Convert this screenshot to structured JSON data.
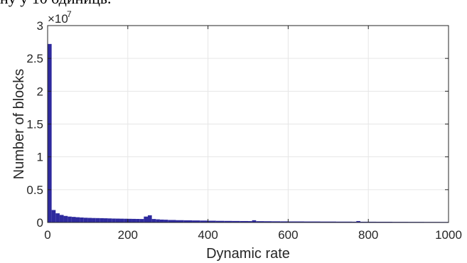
{
  "crop_text": "ну у 10 одиниць.",
  "chart_data": {
    "type": "bar",
    "xlabel": "Dynamic rate",
    "ylabel": "Number of blocks",
    "xlim": [
      0,
      1000
    ],
    "ylim": [
      0,
      30000000
    ],
    "y_exponent_label": "×10",
    "y_exponent_power": "7",
    "x_ticks": [
      {
        "value": 0,
        "label": "0"
      },
      {
        "value": 200,
        "label": "200"
      },
      {
        "value": 400,
        "label": "400"
      },
      {
        "value": 600,
        "label": "600"
      },
      {
        "value": 800,
        "label": "800"
      },
      {
        "value": 1000,
        "label": "1000"
      }
    ],
    "y_ticks": [
      {
        "value": 0,
        "label": "0"
      },
      {
        "value": 5000000,
        "label": "0.5"
      },
      {
        "value": 10000000,
        "label": "1"
      },
      {
        "value": 15000000,
        "label": "1.5"
      },
      {
        "value": 20000000,
        "label": "2"
      },
      {
        "value": 25000000,
        "label": "2.5"
      },
      {
        "value": 30000000,
        "label": "3"
      }
    ],
    "grid": true,
    "bar_color": "#2e2a9e",
    "bin_width": 10,
    "bin_starts": [
      0,
      10,
      20,
      30,
      40,
      50,
      60,
      70,
      80,
      90,
      100,
      110,
      120,
      130,
      140,
      150,
      160,
      170,
      180,
      190,
      200,
      210,
      220,
      230,
      240,
      250,
      260,
      270,
      280,
      290,
      300,
      320,
      340,
      360,
      380,
      400,
      420,
      440,
      460,
      480,
      500,
      510,
      520,
      540,
      560,
      580,
      600,
      640,
      680,
      720,
      760,
      770,
      780,
      820,
      860,
      900,
      940,
      980
    ],
    "values": [
      27200000,
      1900000,
      1400000,
      1150000,
      1000000,
      900000,
      850000,
      800000,
      760000,
      720000,
      700000,
      680000,
      670000,
      660000,
      640000,
      620000,
      600000,
      590000,
      580000,
      570000,
      560000,
      550000,
      540000,
      530000,
      900000,
      1100000,
      530000,
      480000,
      440000,
      420000,
      380000,
      350000,
      330000,
      310000,
      290000,
      270000,
      250000,
      240000,
      230000,
      220000,
      210000,
      340000,
      200000,
      190000,
      180000,
      170000,
      160000,
      150000,
      140000,
      130000,
      120000,
      220000,
      115000,
      110000,
      100000,
      95000,
      90000,
      85000
    ]
  }
}
